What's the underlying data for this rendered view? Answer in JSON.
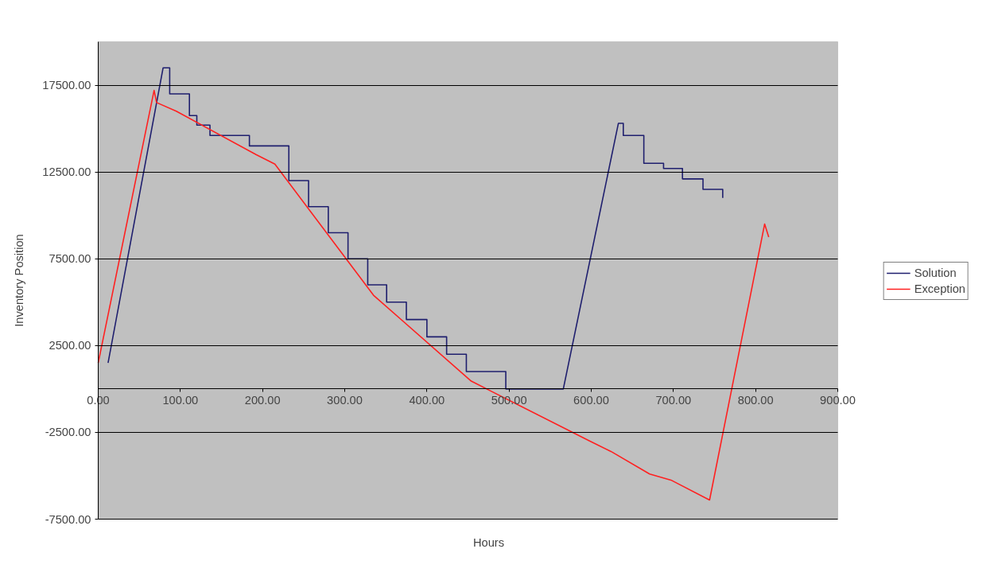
{
  "chart_data": {
    "type": "line",
    "xlabel": "Hours",
    "ylabel": "Inventory Position",
    "xlim": [
      0,
      900
    ],
    "ylim": [
      -7500,
      20000
    ],
    "xticks": [
      {
        "value": 0,
        "label": "0.00"
      },
      {
        "value": 100,
        "label": "100.00"
      },
      {
        "value": 200,
        "label": "200.00"
      },
      {
        "value": 300,
        "label": "300.00"
      },
      {
        "value": 400,
        "label": "400.00"
      },
      {
        "value": 500,
        "label": "500.00"
      },
      {
        "value": 600,
        "label": "600.00"
      },
      {
        "value": 700,
        "label": "700.00"
      },
      {
        "value": 800,
        "label": "800.00"
      },
      {
        "value": 900,
        "label": "900.00"
      }
    ],
    "yticks": [
      {
        "value": -7500,
        "label": "-7500.00"
      },
      {
        "value": -2500,
        "label": "-2500.00"
      },
      {
        "value": 2500,
        "label": "2500.00"
      },
      {
        "value": 7500,
        "label": "7500.00"
      },
      {
        "value": 12500,
        "label": "12500.00"
      },
      {
        "value": 17500,
        "label": "17500.00"
      }
    ],
    "grid": "y",
    "legend": "right",
    "line_style": "solid",
    "marker": "none",
    "series": [
      {
        "name": "Solution",
        "color": "#1f1f6e",
        "x": [
          12,
          79,
          87,
          87,
          111,
          111,
          120,
          120,
          136,
          136,
          184,
          184,
          232,
          232,
          256,
          256,
          280,
          280,
          304,
          304,
          328,
          328,
          351,
          351,
          375,
          375,
          400,
          400,
          424,
          424,
          448,
          448,
          496,
          496,
          566,
          633,
          639,
          639,
          664,
          664,
          688,
          688,
          711,
          711,
          736,
          736,
          760,
          760
        ],
        "values": [
          1500,
          18500,
          18500,
          17000,
          17000,
          15750,
          15750,
          15200,
          15200,
          14600,
          14600,
          14000,
          14000,
          12000,
          12000,
          10500,
          10500,
          9000,
          9000,
          7500,
          7500,
          6000,
          6000,
          5000,
          5000,
          4000,
          4000,
          3000,
          3000,
          2000,
          2000,
          1000,
          1000,
          0,
          0,
          15300,
          15300,
          14600,
          14600,
          13000,
          13000,
          12700,
          12700,
          12100,
          12100,
          11500,
          11500,
          11000
        ]
      },
      {
        "name": "Exception",
        "color": "#ff2020",
        "x": [
          0,
          68,
          71,
          95,
          192,
          215,
          335,
          454,
          479,
          598,
          624,
          671,
          697,
          744,
          811,
          816
        ],
        "values": [
          1500,
          17200,
          16500,
          16000,
          13500,
          12950,
          5400,
          450,
          -150,
          -3000,
          -3600,
          -4900,
          -5250,
          -6400,
          9500,
          8750
        ]
      }
    ]
  }
}
